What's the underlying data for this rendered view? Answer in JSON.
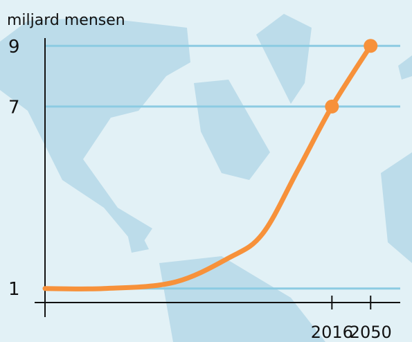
{
  "chart_data": {
    "type": "line",
    "y_label": "miljard mensen",
    "x": [
      1764,
      1816,
      1877,
      1925,
      1955,
      1986,
      2016,
      2050
    ],
    "series": [
      {
        "color": "#f7913a",
        "values": [
          1,
          1,
          1.2,
          2,
          2.8,
          4.9,
          7,
          9
        ]
      }
    ],
    "xlim": [
      1764,
      2076
    ],
    "xticks": [
      2016,
      2050
    ],
    "ylim": [
      0.4,
      9.6
    ],
    "yticks": [
      1,
      7,
      9
    ],
    "grid": true
  }
}
